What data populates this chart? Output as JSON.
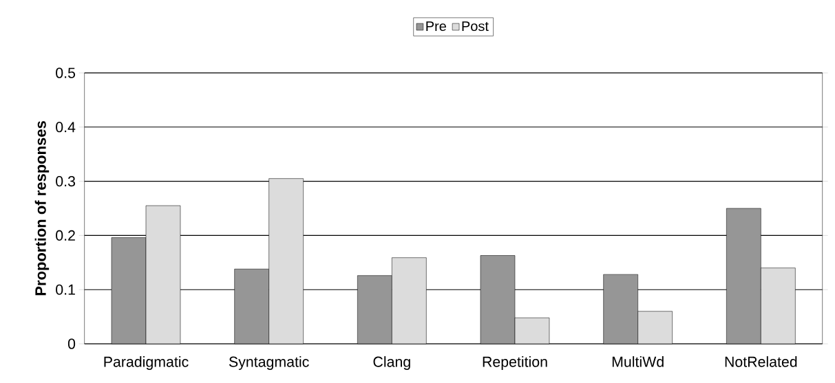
{
  "chart_data": {
    "type": "bar",
    "ylabel": "Proportion of responses",
    "categories": [
      "Paradigmatic",
      "Syntagmatic",
      "Clang",
      "Repetition",
      "MultiWd",
      "NotRelated"
    ],
    "series": [
      {
        "name": "Pre",
        "color": "#969696",
        "values": [
          0.196,
          0.138,
          0.126,
          0.163,
          0.128,
          0.25
        ]
      },
      {
        "name": "Post",
        "color": "#dcdcdc",
        "values": [
          0.255,
          0.305,
          0.159,
          0.048,
          0.06,
          0.14
        ]
      }
    ],
    "ylim": [
      0,
      0.5
    ],
    "yticks": [
      0,
      0.1,
      0.2,
      0.3,
      0.4,
      0.5
    ],
    "grid": "y",
    "legend": "top"
  }
}
